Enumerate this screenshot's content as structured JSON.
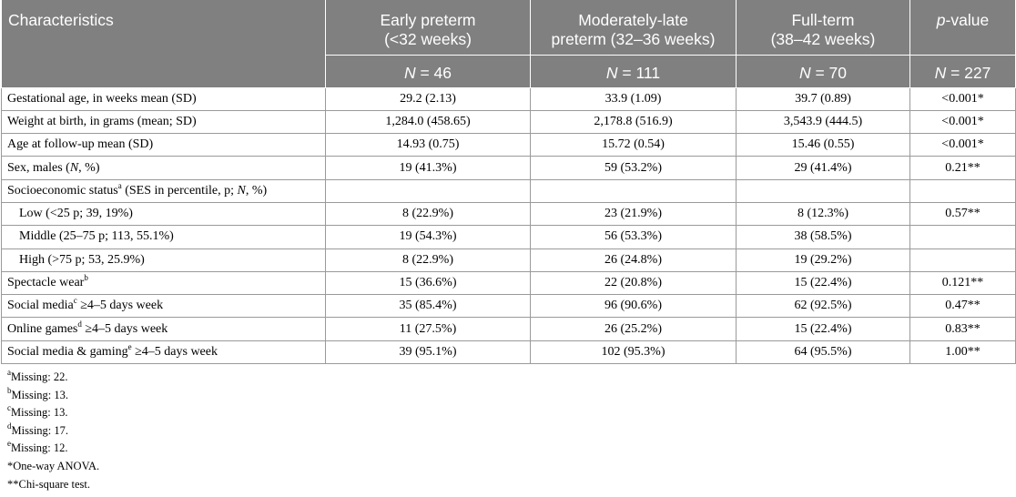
{
  "header": {
    "characteristics": "Characteristics",
    "col1_line1": "Early preterm",
    "col1_line2": "(<32 weeks)",
    "col2_line1": "Moderately-late",
    "col2_line2": "preterm (32–36 weeks)",
    "col3_line1": "Full-term",
    "col3_line2": "(38–42 weeks)",
    "col4_italic": "p",
    "col4_rest": "-value",
    "n_label": "N",
    "n1": " = 46",
    "n2": " = 111",
    "n3": " = 70",
    "n4": " = 227"
  },
  "rows": [
    {
      "label": "Gestational age, in weeks mean (SD)",
      "v1": "29.2 (2.13)",
      "v2": "33.9 (1.09)",
      "v3": "39.7 (0.89)",
      "p": "<0.001*"
    },
    {
      "label": "Weight at birth, in grams (mean; SD)",
      "v1": "1,284.0 (458.65)",
      "v2": "2,178.8 (516.9)",
      "v3": "3,543.9 (444.5)",
      "p": "<0.001*"
    },
    {
      "label": "Age at follow-up mean (SD)",
      "v1": "14.93 (0.75)",
      "v2": "15.72 (0.54)",
      "v3": "15.46 (0.55)",
      "p": "<0.001*"
    },
    {
      "label_a": "Sex, males (",
      "label_n": "N",
      "label_b": ", %)",
      "v1": "19 (41.3%)",
      "v2": "59 (53.2%)",
      "v3": "29 (41.4%)",
      "p": "0.21**"
    },
    {
      "label_a": "Socioeconomic status",
      "sup": "a",
      "label_b": " (SES in percentile, p; ",
      "label_n": "N",
      "label_c": ", %)"
    },
    {
      "label": "Low (<25 p; 39, 19%)",
      "v1": "8 (22.9%)",
      "v2": "23 (21.9%)",
      "v3": "8 (12.3%)",
      "p": "0.57**"
    },
    {
      "label": "Middle (25–75 p; 113, 55.1%)",
      "v1": "19 (54.3%)",
      "v2": "56 (53.3%)",
      "v3": "38 (58.5%)",
      "p": ""
    },
    {
      "label": "High (>75 p; 53, 25.9%)",
      "v1": "8 (22.9%)",
      "v2": "26 (24.8%)",
      "v3": "19 (29.2%)",
      "p": ""
    },
    {
      "label": "Spectacle wear",
      "sup": "b",
      "label_b": "",
      "v1": "15 (36.6%)",
      "v2": "22 (20.8%)",
      "v3": "15 (22.4%)",
      "p": "0.121**"
    },
    {
      "label": "Social media",
      "sup": "c",
      "label_b": " ≥4–5 days week",
      "v1": "35 (85.4%)",
      "v2": "96 (90.6%)",
      "v3": "62 (92.5%)",
      "p": "0.47**"
    },
    {
      "label": "Online games",
      "sup": "d",
      "label_b": " ≥4–5 days week",
      "v1": "11 (27.5%)",
      "v2": "26 (25.2%)",
      "v3": "15 (22.4%)",
      "p": "0.83**"
    },
    {
      "label": "Social media & gaming",
      "sup": "e",
      "label_b": " ≥4–5 days week",
      "v1": "39 (95.1%)",
      "v2": "102 (95.3%)",
      "v3": "64 (95.5%)",
      "p": "1.00**"
    }
  ],
  "footnotes": [
    {
      "mark": "a",
      "text": "Missing: 22."
    },
    {
      "mark": "b",
      "text": "Missing: 13."
    },
    {
      "mark": "c",
      "text": "Missing: 13."
    },
    {
      "mark": "d",
      "text": "Missing: 17."
    },
    {
      "mark": "e",
      "text": "Missing: 12."
    },
    {
      "mark": "",
      "text": "*One-way ANOVA."
    },
    {
      "mark": "",
      "text": "**Chi-square test."
    }
  ]
}
